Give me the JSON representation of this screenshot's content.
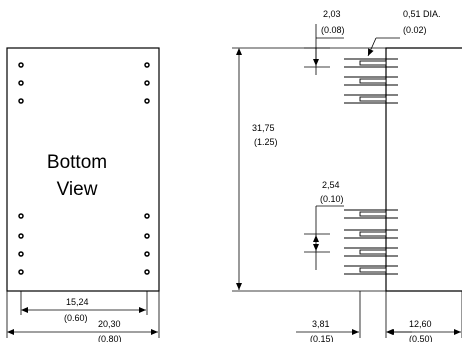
{
  "bottom_view": {
    "label_line1": "Bottom",
    "label_line2": "View",
    "pin_spacing_mm": "15,24",
    "pin_spacing_in": "(0.60)",
    "width_mm": "20,30",
    "width_in": "(0.80)"
  },
  "side_view": {
    "pin_length_mm": "2,03",
    "pin_length_in": "(0.08)",
    "pin_dia_mm": "0,51 DIA.",
    "pin_dia_in": "(0.02)",
    "height_mm": "31,75",
    "height_in": "(1.25)",
    "pin_pitch_mm": "2,54",
    "pin_pitch_in": "(0.10)",
    "offset_mm": "3,81",
    "offset_in": "(0.15)",
    "depth_mm": "12,60",
    "depth_in": "(0.50)"
  }
}
